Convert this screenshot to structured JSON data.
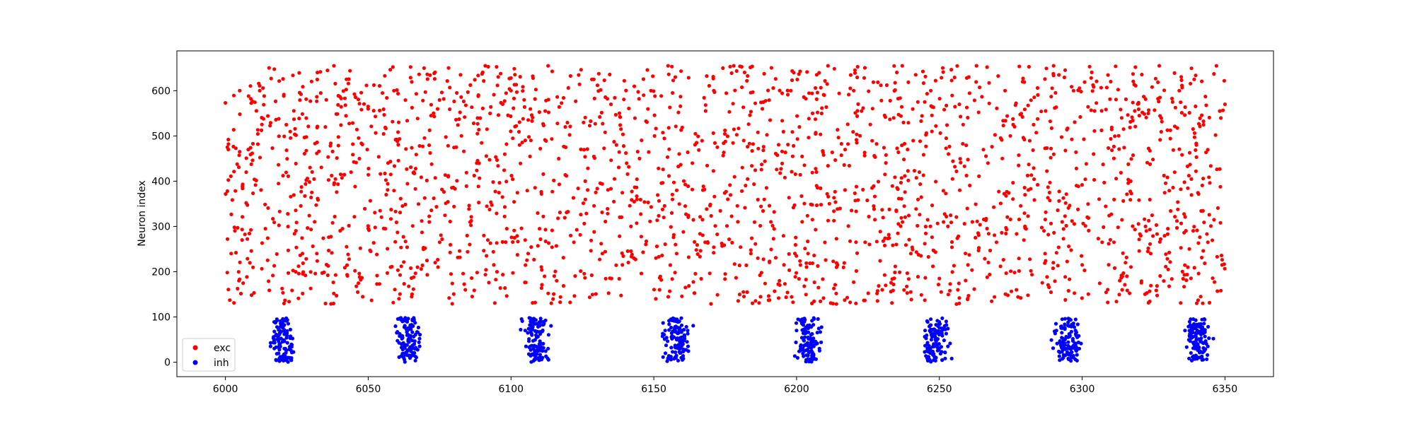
{
  "chart_data": {
    "type": "scatter",
    "title": "",
    "xlabel": "",
    "ylabel": "Neuron index",
    "xlim": [
      5983,
      6367
    ],
    "ylim": [
      -32,
      688
    ],
    "xticks": [
      6000,
      6050,
      6100,
      6150,
      6200,
      6250,
      6300,
      6350
    ],
    "yticks": [
      0,
      100,
      200,
      300,
      400,
      500,
      600
    ],
    "grid": false,
    "legend": {
      "placement": "lower-left",
      "entries": [
        "exc",
        "inh"
      ]
    },
    "exc_sampling": {
      "x_range": [
        6000,
        6350
      ],
      "y_range": [
        128,
        655
      ],
      "approx_count": 2100
    },
    "inh_bursts_centers": [
      6020,
      6064,
      6109,
      6158,
      6204,
      6249,
      6295,
      6340
    ],
    "series": [
      {
        "name": "exc",
        "color": "#ff0000",
        "points": [
          [
            6000,
            573
          ],
          [
            6001,
            492
          ],
          [
            6002,
            240
          ],
          [
            6003,
            131
          ],
          [
            6005,
            600
          ],
          [
            6006,
            384
          ],
          [
            6008,
            470
          ],
          [
            6010,
            153
          ],
          [
            6012,
            600
          ],
          [
            6014,
            295
          ],
          [
            6016,
            627
          ],
          [
            6018,
            239
          ],
          [
            6019,
            333
          ],
          [
            6022,
            411
          ],
          [
            6024,
            537
          ],
          [
            6027,
            240
          ],
          [
            6030,
            364
          ],
          [
            6032,
            240
          ],
          [
            6035,
            520
          ],
          [
            6038,
            655
          ],
          [
            6041,
            295
          ],
          [
            6044,
            420
          ],
          [
            6047,
            188
          ],
          [
            6050,
            560
          ],
          [
            6053,
            238
          ],
          [
            6056,
            295
          ],
          [
            6059,
            600
          ],
          [
            6062,
            345
          ],
          [
            6066,
            420
          ],
          [
            6069,
            214
          ],
          [
            6072,
            545
          ],
          [
            6075,
            265
          ],
          [
            6078,
            410
          ],
          [
            6081,
            595
          ],
          [
            6084,
            160
          ],
          [
            6088,
            440
          ],
          [
            6091,
            655
          ],
          [
            6094,
            215
          ],
          [
            6097,
            365
          ],
          [
            6100,
            600
          ],
          [
            6103,
            480
          ],
          [
            6106,
            240
          ],
          [
            6110,
            295
          ],
          [
            6113,
            655
          ],
          [
            6116,
            180
          ],
          [
            6119,
            520
          ],
          [
            6122,
            265
          ],
          [
            6126,
            400
          ],
          [
            6129,
            625
          ],
          [
            6132,
            240
          ],
          [
            6135,
            570
          ],
          [
            6139,
            215
          ],
          [
            6142,
            300
          ],
          [
            6145,
            450
          ],
          [
            6149,
            600
          ],
          [
            6152,
            160
          ],
          [
            6155,
            655
          ],
          [
            6158,
            240
          ],
          [
            6161,
            345
          ],
          [
            6165,
            485
          ],
          [
            6168,
            265
          ],
          [
            6171,
            600
          ],
          [
            6175,
            195
          ],
          [
            6178,
            655
          ],
          [
            6181,
            430
          ],
          [
            6184,
            240
          ],
          [
            6188,
            560
          ],
          [
            6191,
            310
          ],
          [
            6194,
            180
          ],
          [
            6198,
            600
          ],
          [
            6201,
            520
          ],
          [
            6204,
            240
          ],
          [
            6207,
            390
          ],
          [
            6211,
            655
          ],
          [
            6214,
            210
          ],
          [
            6217,
            470
          ],
          [
            6220,
            600
          ],
          [
            6224,
            265
          ],
          [
            6227,
            345
          ],
          [
            6230,
            160
          ],
          [
            6234,
            540
          ],
          [
            6237,
            655
          ],
          [
            6240,
            240
          ],
          [
            6243,
            420
          ],
          [
            6247,
            600
          ],
          [
            6250,
            185
          ],
          [
            6253,
            300
          ],
          [
            6257,
            570
          ],
          [
            6260,
            215
          ],
          [
            6263,
            655
          ],
          [
            6267,
            440
          ],
          [
            6270,
            265
          ],
          [
            6273,
            600
          ],
          [
            6277,
            160
          ],
          [
            6280,
            370
          ],
          [
            6283,
            525
          ],
          [
            6287,
            240
          ],
          [
            6290,
            655
          ],
          [
            6293,
            310
          ],
          [
            6297,
            600
          ],
          [
            6300,
            215
          ],
          [
            6304,
            460
          ],
          [
            6307,
            265
          ],
          [
            6310,
            620
          ],
          [
            6314,
            160
          ],
          [
            6317,
            400
          ],
          [
            6320,
            545
          ],
          [
            6324,
            240
          ],
          [
            6327,
            655
          ],
          [
            6330,
            295
          ],
          [
            6334,
            600
          ],
          [
            6337,
            210
          ],
          [
            6340,
            480
          ],
          [
            6344,
            265
          ],
          [
            6347,
            655
          ],
          [
            6349,
            215
          ],
          [
            6350,
            570
          ]
        ]
      },
      {
        "name": "inh",
        "color": "#0000ff",
        "points": [
          [
            6018,
            95
          ],
          [
            6020,
            45
          ],
          [
            6022,
            10
          ],
          [
            6019,
            70
          ],
          [
            6021,
            30
          ],
          [
            6062,
            90
          ],
          [
            6064,
            50
          ],
          [
            6066,
            15
          ],
          [
            6060,
            65
          ],
          [
            6068,
            35
          ],
          [
            6107,
            95
          ],
          [
            6109,
            55
          ],
          [
            6111,
            10
          ],
          [
            6105,
            70
          ],
          [
            6113,
            30
          ],
          [
            6156,
            95
          ],
          [
            6158,
            50
          ],
          [
            6160,
            5
          ],
          [
            6154,
            70
          ],
          [
            6162,
            35
          ],
          [
            6202,
            95
          ],
          [
            6204,
            55
          ],
          [
            6206,
            10
          ],
          [
            6200,
            70
          ],
          [
            6208,
            30
          ],
          [
            6247,
            95
          ],
          [
            6249,
            50
          ],
          [
            6251,
            5
          ],
          [
            6245,
            70
          ],
          [
            6253,
            35
          ],
          [
            6293,
            95
          ],
          [
            6295,
            55
          ],
          [
            6297,
            10
          ],
          [
            6291,
            70
          ],
          [
            6299,
            30
          ],
          [
            6338,
            95
          ],
          [
            6340,
            50
          ],
          [
            6342,
            5
          ],
          [
            6336,
            70
          ],
          [
            6344,
            35
          ]
        ]
      }
    ]
  }
}
